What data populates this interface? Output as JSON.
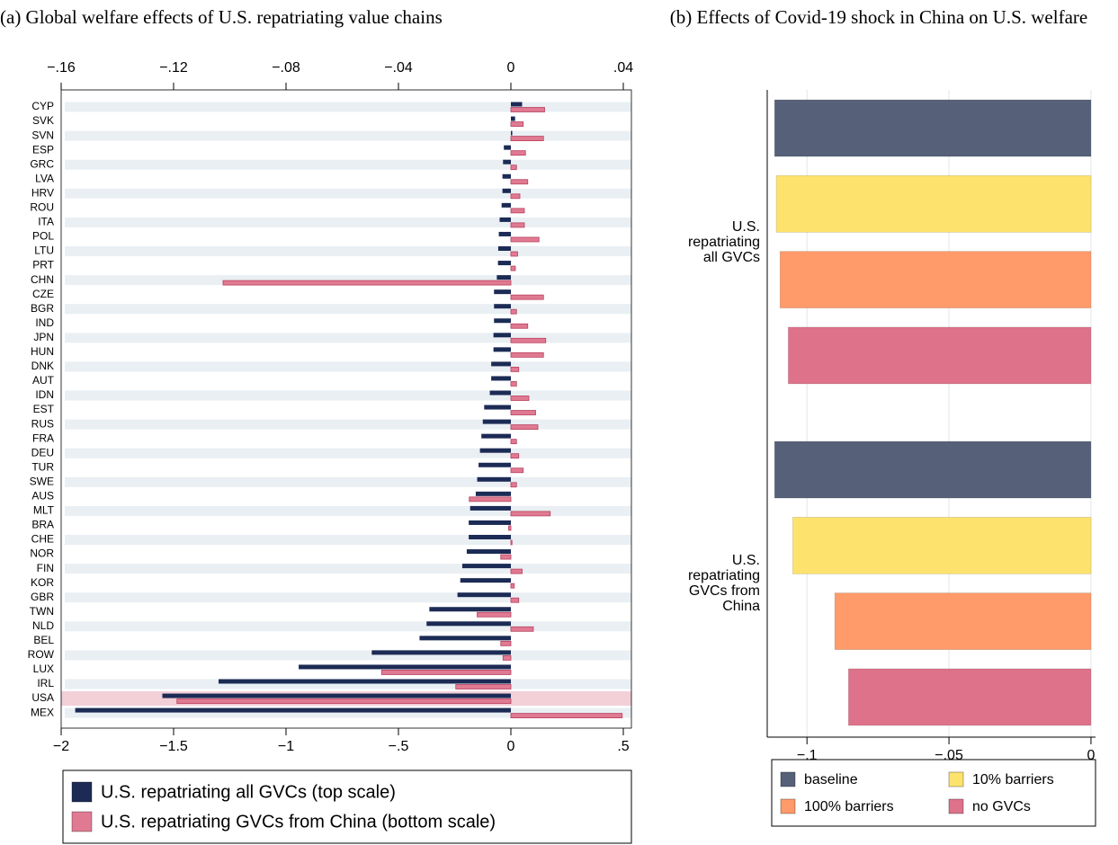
{
  "chart_data": [
    {
      "type": "bar",
      "orientation": "horizontal",
      "title": "(a) Global welfare effects of U.S. repatriating value chains",
      "categories": [
        "CYP",
        "SVK",
        "SVN",
        "ESP",
        "GRC",
        "LVA",
        "HRV",
        "ROU",
        "ITA",
        "POL",
        "LTU",
        "PRT",
        "CHN",
        "CZE",
        "BGR",
        "IND",
        "JPN",
        "HUN",
        "DNK",
        "AUT",
        "IDN",
        "EST",
        "RUS",
        "FRA",
        "DEU",
        "TUR",
        "SWE",
        "AUS",
        "MLT",
        "BRA",
        "CHE",
        "NOR",
        "FIN",
        "KOR",
        "GBR",
        "TWN",
        "NLD",
        "BEL",
        "ROW",
        "LUX",
        "IRL",
        "USA",
        "MEX"
      ],
      "series": [
        {
          "name": "U.S. repatriating all GVCs (top scale)",
          "color": "#1c2b55",
          "axis": "x2",
          "values": [
            0.004,
            0.0015,
            0.0005,
            -0.0025,
            -0.0028,
            -0.003,
            -0.003,
            -0.0033,
            -0.004,
            -0.0043,
            -0.0045,
            -0.0046,
            -0.005,
            -0.006,
            -0.006,
            -0.006,
            -0.0062,
            -0.0062,
            -0.007,
            -0.007,
            -0.0075,
            -0.0095,
            -0.01,
            -0.0105,
            -0.011,
            -0.0115,
            -0.012,
            -0.0125,
            -0.0145,
            -0.015,
            -0.015,
            -0.0157,
            -0.0173,
            -0.018,
            -0.019,
            -0.029,
            -0.03,
            -0.0325,
            -0.0495,
            -0.0755,
            -0.104,
            -0.124,
            -0.155
          ]
        },
        {
          "name": "U.S. repatriating GVCs from China (bottom scale)",
          "color": "#e07a93",
          "values": [
            0.15,
            0.055,
            0.145,
            0.065,
            0.025,
            0.075,
            0.04,
            0.06,
            0.06,
            0.125,
            0.03,
            0.02,
            -1.28,
            0.145,
            0.025,
            0.075,
            0.155,
            0.145,
            0.035,
            0.025,
            0.08,
            0.11,
            0.12,
            0.025,
            0.035,
            0.055,
            0.025,
            -0.185,
            0.175,
            -0.01,
            0.005,
            -0.045,
            0.05,
            0.015,
            0.035,
            -0.15,
            0.1,
            -0.045,
            -0.035,
            -0.575,
            -0.245,
            -1.485,
            0.495
          ]
        }
      ],
      "xlim": [
        -2,
        0.536
      ],
      "xticks": [
        {
          "value": -2,
          "label": "−2"
        },
        {
          "value": -1.5,
          "label": "−1.5"
        },
        {
          "value": -1,
          "label": "−1"
        },
        {
          "value": -0.5,
          "label": "−.5"
        },
        0,
        {
          "value": 0.5,
          "label": ".5"
        }
      ],
      "x2lim": [
        -0.16,
        0.04288
      ],
      "x2ticks": [
        {
          "value": -0.16,
          "label": "−.16"
        },
        {
          "value": -0.12,
          "label": "−.12"
        },
        {
          "value": -0.08,
          "label": "−.08"
        },
        {
          "value": -0.04,
          "label": "−.04"
        },
        0,
        {
          "value": 0.04,
          "label": ".04"
        }
      ],
      "row_shading": true,
      "highlight": "USA",
      "legend": "bottom"
    },
    {
      "type": "bar",
      "orientation": "horizontal",
      "title": "(b) Effects of Covid-19 shock in China on U.S. welfare",
      "categories": [
        "U.S. repatriating all GVCs",
        "U.S. repatriating GVCs from China"
      ],
      "series": [
        {
          "name": "baseline",
          "color": "#566179",
          "values": [
            -0.1114,
            -0.1114
          ]
        },
        {
          "name": "10% barriers",
          "color": "#fde36e",
          "values": [
            -0.1108,
            -0.105
          ]
        },
        {
          "name": "100% barriers",
          "color": "#ff9a6a",
          "values": [
            -0.1095,
            -0.0902
          ]
        },
        {
          "name": "no GVCs",
          "color": "#de728b",
          "values": [
            -0.1066,
            -0.0854
          ]
        }
      ],
      "xlim": [
        -0.114,
        0.0016
      ],
      "xticks": [
        {
          "value": -0.1,
          "label": "−.1"
        },
        {
          "value": -0.05,
          "label": "−.05"
        },
        0
      ],
      "grid": true,
      "legend": "bottom"
    }
  ]
}
